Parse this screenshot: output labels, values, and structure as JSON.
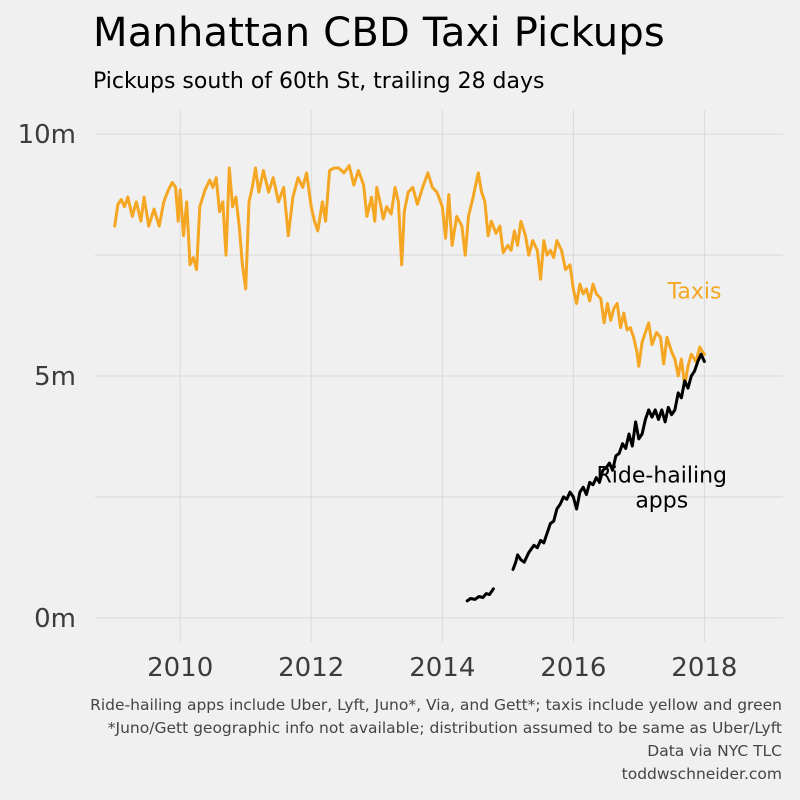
{
  "header": {
    "title": "Manhattan CBD Taxi Pickups",
    "subtitle": "Pickups south of 60th St, trailing 28 days"
  },
  "footer": {
    "note1": "Ride-hailing apps include Uber, Lyft, Juno*, Via, and Gett*; taxis include yellow and green",
    "note2": "*Juno/Gett geographic info not available; distribution assumed to be same as Uber/Lyft",
    "source": "Data via NYC TLC",
    "credit": "toddwschneider.com"
  },
  "chart_data": {
    "type": "line",
    "title": "Manhattan CBD Taxi Pickups",
    "subtitle": "Pickups south of 60th St, trailing 28 days",
    "xlabel": "",
    "ylabel": "",
    "xlim": [
      2008.7,
      2019.2
    ],
    "ylim": [
      -0.5,
      10.5
    ],
    "x_ticks": [
      2010,
      2012,
      2014,
      2016,
      2018
    ],
    "x_tick_labels": [
      "2010",
      "2012",
      "2014",
      "2016",
      "2018"
    ],
    "y_ticks": [
      0,
      5,
      10
    ],
    "y_tick_labels": [
      "0m",
      "5m",
      "10m"
    ],
    "y_minor_gridlines": [
      2.5,
      7.5
    ],
    "grid": true,
    "legend": "direct labels",
    "colors": {
      "background": "#f0f0f0",
      "grid": "#d9d9d9",
      "taxis": "#f5a623",
      "ride_hailing": "#000000"
    },
    "series": [
      {
        "name": "Taxis",
        "label_lines": [
          "Taxis"
        ],
        "color": "#f5a623",
        "points": [
          [
            2009.0,
            8.1
          ],
          [
            2009.05,
            8.55
          ],
          [
            2009.1,
            8.65
          ],
          [
            2009.15,
            8.5
          ],
          [
            2009.2,
            8.7
          ],
          [
            2009.27,
            8.3
          ],
          [
            2009.33,
            8.6
          ],
          [
            2009.4,
            8.2
          ],
          [
            2009.45,
            8.7
          ],
          [
            2009.52,
            8.1
          ],
          [
            2009.6,
            8.45
          ],
          [
            2009.68,
            8.1
          ],
          [
            2009.75,
            8.6
          ],
          [
            2009.82,
            8.85
          ],
          [
            2009.88,
            9.0
          ],
          [
            2009.93,
            8.9
          ],
          [
            2009.97,
            8.2
          ],
          [
            2010.0,
            8.85
          ],
          [
            2010.05,
            7.9
          ],
          [
            2010.1,
            8.6
          ],
          [
            2010.15,
            7.3
          ],
          [
            2010.2,
            7.45
          ],
          [
            2010.25,
            7.2
          ],
          [
            2010.3,
            8.5
          ],
          [
            2010.38,
            8.85
          ],
          [
            2010.45,
            9.05
          ],
          [
            2010.5,
            8.9
          ],
          [
            2010.55,
            9.1
          ],
          [
            2010.6,
            8.4
          ],
          [
            2010.65,
            8.6
          ],
          [
            2010.7,
            7.5
          ],
          [
            2010.75,
            9.3
          ],
          [
            2010.8,
            8.5
          ],
          [
            2010.85,
            8.7
          ],
          [
            2010.9,
            8.1
          ],
          [
            2010.95,
            7.3
          ],
          [
            2011.0,
            6.8
          ],
          [
            2011.05,
            8.6
          ],
          [
            2011.1,
            8.9
          ],
          [
            2011.15,
            9.3
          ],
          [
            2011.2,
            8.8
          ],
          [
            2011.27,
            9.25
          ],
          [
            2011.35,
            8.8
          ],
          [
            2011.42,
            9.1
          ],
          [
            2011.5,
            8.6
          ],
          [
            2011.58,
            8.9
          ],
          [
            2011.65,
            7.9
          ],
          [
            2011.72,
            8.7
          ],
          [
            2011.8,
            9.1
          ],
          [
            2011.87,
            8.9
          ],
          [
            2011.93,
            9.2
          ],
          [
            2012.0,
            8.5
          ],
          [
            2012.05,
            8.2
          ],
          [
            2012.1,
            8.0
          ],
          [
            2012.17,
            8.6
          ],
          [
            2012.22,
            8.2
          ],
          [
            2012.28,
            9.25
          ],
          [
            2012.35,
            9.3
          ],
          [
            2012.42,
            9.3
          ],
          [
            2012.5,
            9.2
          ],
          [
            2012.58,
            9.35
          ],
          [
            2012.65,
            8.95
          ],
          [
            2012.72,
            9.25
          ],
          [
            2012.8,
            8.95
          ],
          [
            2012.85,
            8.3
          ],
          [
            2012.92,
            8.7
          ],
          [
            2012.97,
            8.2
          ],
          [
            2013.0,
            8.9
          ],
          [
            2013.05,
            8.6
          ],
          [
            2013.1,
            8.25
          ],
          [
            2013.15,
            8.5
          ],
          [
            2013.22,
            8.35
          ],
          [
            2013.28,
            8.9
          ],
          [
            2013.33,
            8.6
          ],
          [
            2013.38,
            7.3
          ],
          [
            2013.42,
            8.4
          ],
          [
            2013.48,
            8.8
          ],
          [
            2013.55,
            8.9
          ],
          [
            2013.62,
            8.55
          ],
          [
            2013.7,
            8.9
          ],
          [
            2013.78,
            9.2
          ],
          [
            2013.85,
            8.9
          ],
          [
            2013.92,
            8.8
          ],
          [
            2014.0,
            8.5
          ],
          [
            2014.05,
            7.85
          ],
          [
            2014.1,
            8.75
          ],
          [
            2014.15,
            7.7
          ],
          [
            2014.22,
            8.3
          ],
          [
            2014.3,
            8.1
          ],
          [
            2014.35,
            7.5
          ],
          [
            2014.4,
            8.3
          ],
          [
            2014.47,
            8.7
          ],
          [
            2014.55,
            9.2
          ],
          [
            2014.6,
            8.8
          ],
          [
            2014.65,
            8.6
          ],
          [
            2014.7,
            7.9
          ],
          [
            2014.75,
            8.2
          ],
          [
            2014.82,
            7.95
          ],
          [
            2014.88,
            8.1
          ],
          [
            2014.93,
            7.55
          ],
          [
            2015.0,
            7.7
          ],
          [
            2015.05,
            7.6
          ],
          [
            2015.1,
            8.0
          ],
          [
            2015.15,
            7.7
          ],
          [
            2015.2,
            8.2
          ],
          [
            2015.27,
            7.9
          ],
          [
            2015.32,
            7.5
          ],
          [
            2015.38,
            7.8
          ],
          [
            2015.45,
            7.6
          ],
          [
            2015.5,
            7.0
          ],
          [
            2015.55,
            7.8
          ],
          [
            2015.6,
            7.5
          ],
          [
            2015.65,
            7.6
          ],
          [
            2015.7,
            7.45
          ],
          [
            2015.75,
            7.8
          ],
          [
            2015.82,
            7.6
          ],
          [
            2015.88,
            7.2
          ],
          [
            2015.95,
            7.3
          ],
          [
            2016.0,
            6.8
          ],
          [
            2016.05,
            6.5
          ],
          [
            2016.1,
            6.9
          ],
          [
            2016.15,
            6.7
          ],
          [
            2016.2,
            6.8
          ],
          [
            2016.25,
            6.55
          ],
          [
            2016.3,
            6.9
          ],
          [
            2016.35,
            6.7
          ],
          [
            2016.42,
            6.6
          ],
          [
            2016.47,
            6.1
          ],
          [
            2016.52,
            6.5
          ],
          [
            2016.57,
            6.15
          ],
          [
            2016.62,
            6.4
          ],
          [
            2016.67,
            6.5
          ],
          [
            2016.72,
            6.0
          ],
          [
            2016.77,
            6.3
          ],
          [
            2016.82,
            5.95
          ],
          [
            2016.87,
            6.0
          ],
          [
            2016.92,
            5.8
          ],
          [
            2016.97,
            5.5
          ],
          [
            2017.0,
            5.2
          ],
          [
            2017.05,
            5.7
          ],
          [
            2017.1,
            5.9
          ],
          [
            2017.15,
            6.1
          ],
          [
            2017.2,
            5.65
          ],
          [
            2017.27,
            5.9
          ],
          [
            2017.33,
            5.8
          ],
          [
            2017.38,
            5.25
          ],
          [
            2017.43,
            5.8
          ],
          [
            2017.5,
            5.5
          ],
          [
            2017.55,
            5.35
          ],
          [
            2017.6,
            5.0
          ],
          [
            2017.65,
            5.35
          ],
          [
            2017.7,
            4.8
          ],
          [
            2017.75,
            5.2
          ],
          [
            2017.8,
            5.45
          ],
          [
            2017.87,
            5.3
          ],
          [
            2017.93,
            5.6
          ],
          [
            2017.97,
            5.5
          ],
          [
            2018.0,
            5.45
          ]
        ]
      },
      {
        "name": "Ride-hailing apps",
        "label_lines": [
          "Ride-hailing",
          "apps"
        ],
        "color": "#000000",
        "segments": [
          [
            [
              2014.38,
              0.35
            ],
            [
              2014.43,
              0.4
            ],
            [
              2014.5,
              0.38
            ],
            [
              2014.56,
              0.44
            ],
            [
              2014.62,
              0.42
            ],
            [
              2014.67,
              0.5
            ],
            [
              2014.72,
              0.48
            ],
            [
              2014.78,
              0.6
            ]
          ],
          [
            [
              2015.08,
              1.0
            ],
            [
              2015.12,
              1.15
            ],
            [
              2015.15,
              1.3
            ],
            [
              2015.2,
              1.2
            ],
            [
              2015.25,
              1.15
            ],
            [
              2015.32,
              1.35
            ],
            [
              2015.4,
              1.5
            ],
            [
              2015.45,
              1.45
            ],
            [
              2015.5,
              1.6
            ],
            [
              2015.55,
              1.55
            ],
            [
              2015.6,
              1.75
            ],
            [
              2015.65,
              1.95
            ],
            [
              2015.7,
              2.0
            ],
            [
              2015.75,
              2.25
            ],
            [
              2015.8,
              2.35
            ],
            [
              2015.85,
              2.5
            ],
            [
              2015.9,
              2.45
            ],
            [
              2015.95,
              2.6
            ],
            [
              2016.0,
              2.5
            ],
            [
              2016.05,
              2.25
            ],
            [
              2016.1,
              2.6
            ],
            [
              2016.15,
              2.7
            ],
            [
              2016.2,
              2.55
            ],
            [
              2016.25,
              2.8
            ],
            [
              2016.3,
              2.75
            ],
            [
              2016.35,
              2.9
            ],
            [
              2016.4,
              2.8
            ],
            [
              2016.45,
              3.05
            ],
            [
              2016.5,
              3.1
            ],
            [
              2016.55,
              3.2
            ],
            [
              2016.6,
              3.05
            ],
            [
              2016.65,
              3.35
            ],
            [
              2016.7,
              3.4
            ],
            [
              2016.75,
              3.6
            ],
            [
              2016.8,
              3.5
            ],
            [
              2016.85,
              3.8
            ],
            [
              2016.9,
              3.55
            ],
            [
              2016.95,
              4.05
            ],
            [
              2017.0,
              3.7
            ],
            [
              2017.05,
              3.8
            ],
            [
              2017.1,
              4.1
            ],
            [
              2017.15,
              4.3
            ],
            [
              2017.2,
              4.15
            ],
            [
              2017.25,
              4.3
            ],
            [
              2017.3,
              4.1
            ],
            [
              2017.35,
              4.3
            ],
            [
              2017.4,
              4.05
            ],
            [
              2017.45,
              4.35
            ],
            [
              2017.5,
              4.2
            ],
            [
              2017.55,
              4.3
            ],
            [
              2017.6,
              4.65
            ],
            [
              2017.65,
              4.55
            ],
            [
              2017.7,
              4.9
            ],
            [
              2017.75,
              4.75
            ],
            [
              2017.8,
              5.0
            ],
            [
              2017.85,
              5.1
            ],
            [
              2017.9,
              5.3
            ],
            [
              2017.95,
              5.45
            ],
            [
              2018.0,
              5.3
            ]
          ]
        ]
      }
    ]
  }
}
